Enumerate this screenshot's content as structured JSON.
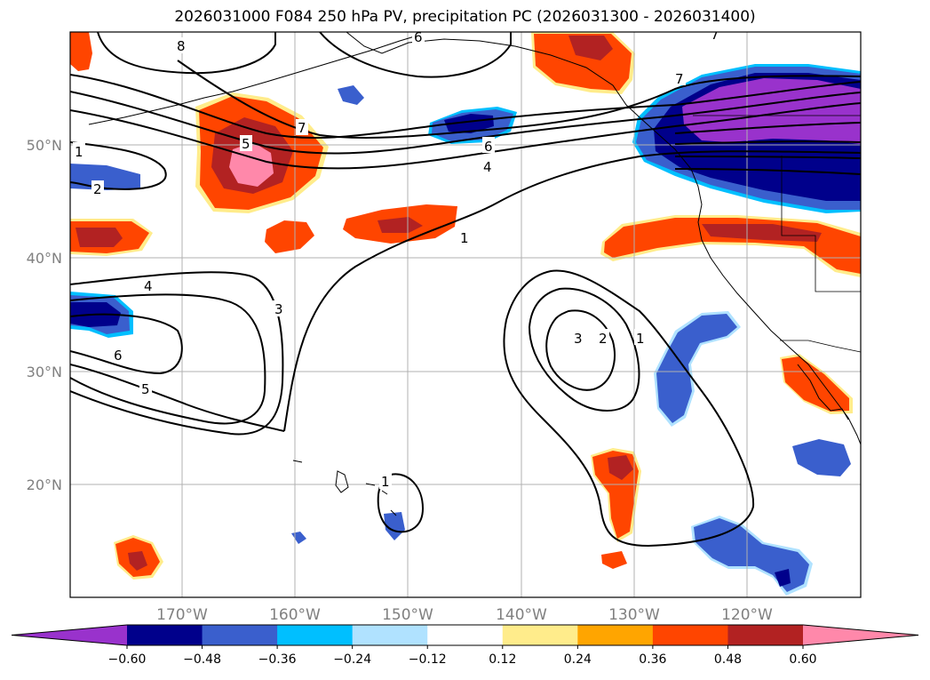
{
  "title": "2026031000 F084 250 hPa PV, precipitation PC (2026031300 - 2026031400)",
  "latitude_labels": [
    "50°N",
    "40°N",
    "30°N",
    "20°N"
  ],
  "longitude_labels": [
    "170°W",
    "160°W",
    "150°W",
    "140°W",
    "130°W",
    "120°W"
  ],
  "pv_contour_labels": [
    "8",
    "6",
    "7",
    "5",
    "1",
    "2",
    "7",
    "6",
    "4",
    "1",
    "4",
    "3",
    "6",
    "5",
    "3",
    "2",
    "1",
    "1",
    "7"
  ],
  "colorbar": {
    "tick_labels": [
      "−0.60",
      "−0.48",
      "−0.36",
      "−0.24",
      "−0.12",
      "0.12",
      "0.24",
      "0.36",
      "0.48",
      "0.60"
    ],
    "colors": [
      "#9932cc",
      "#00008b",
      "#3a5fcd",
      "#00bfff",
      "#b0e2ff",
      "#ffffff",
      "#ffec8b",
      "#ffa500",
      "#ff4500",
      "#b22222",
      "#ff88aa"
    ]
  }
}
